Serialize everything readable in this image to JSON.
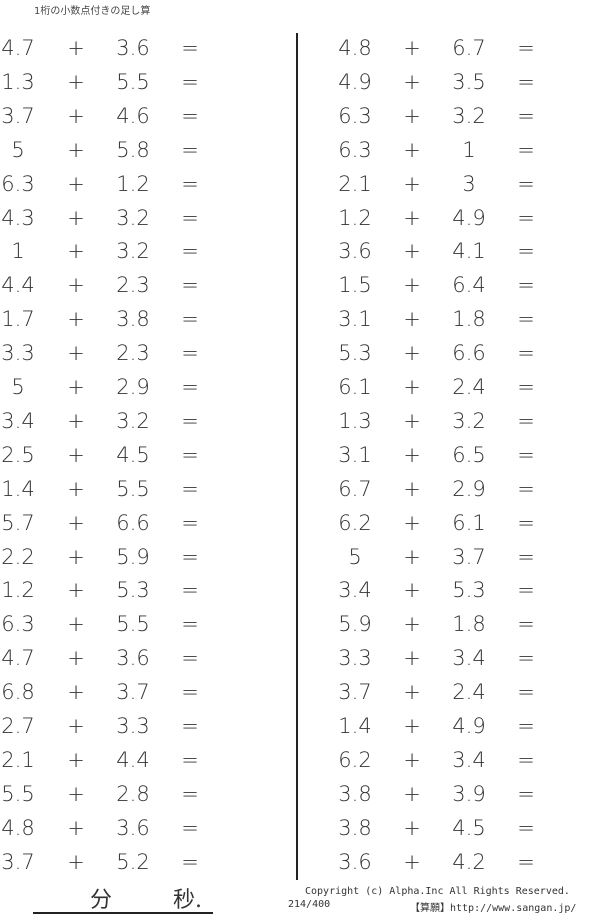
{
  "title": "1桁の小数点付きの足し算",
  "operator": "+",
  "equals": "=",
  "left_problems": [
    [
      "4.7",
      "3.6"
    ],
    [
      "1.3",
      "5.5"
    ],
    [
      "3.7",
      "4.6"
    ],
    [
      "5",
      "5.8"
    ],
    [
      "6.3",
      "1.2"
    ],
    [
      "4.3",
      "3.2"
    ],
    [
      "1",
      "3.2"
    ],
    [
      "4.4",
      "2.3"
    ],
    [
      "1.7",
      "3.8"
    ],
    [
      "3.3",
      "2.3"
    ],
    [
      "5",
      "2.9"
    ],
    [
      "3.4",
      "3.2"
    ],
    [
      "2.5",
      "4.5"
    ],
    [
      "1.4",
      "5.5"
    ],
    [
      "5.7",
      "6.6"
    ],
    [
      "2.2",
      "5.9"
    ],
    [
      "1.2",
      "5.3"
    ],
    [
      "6.3",
      "5.5"
    ],
    [
      "4.7",
      "3.6"
    ],
    [
      "6.8",
      "3.7"
    ],
    [
      "2.7",
      "3.3"
    ],
    [
      "2.1",
      "4.4"
    ],
    [
      "5.5",
      "2.8"
    ],
    [
      "4.8",
      "3.6"
    ],
    [
      "3.7",
      "5.2"
    ]
  ],
  "right_problems": [
    [
      "4.8",
      "6.7"
    ],
    [
      "4.9",
      "3.5"
    ],
    [
      "6.3",
      "3.2"
    ],
    [
      "6.3",
      "1"
    ],
    [
      "2.1",
      "3"
    ],
    [
      "1.2",
      "4.9"
    ],
    [
      "3.6",
      "4.1"
    ],
    [
      "1.5",
      "6.4"
    ],
    [
      "3.1",
      "1.8"
    ],
    [
      "5.3",
      "6.6"
    ],
    [
      "6.1",
      "2.4"
    ],
    [
      "1.3",
      "3.2"
    ],
    [
      "3.1",
      "6.5"
    ],
    [
      "6.7",
      "2.9"
    ],
    [
      "6.2",
      "6.1"
    ],
    [
      "5",
      "3.7"
    ],
    [
      "3.4",
      "5.3"
    ],
    [
      "5.9",
      "1.8"
    ],
    [
      "3.3",
      "3.4"
    ],
    [
      "3.7",
      "2.4"
    ],
    [
      "1.4",
      "4.9"
    ],
    [
      "6.2",
      "3.4"
    ],
    [
      "3.8",
      "3.9"
    ],
    [
      "3.8",
      "4.5"
    ],
    [
      "3.6",
      "4.2"
    ]
  ],
  "footer": {
    "minutes_label": "分",
    "seconds_label": "秒.",
    "copyright": "Copyright (c)  Alpha.Inc All Rights Reserved.",
    "page": "214/400",
    "site": "【算願】http://www.sangan.jp/"
  }
}
